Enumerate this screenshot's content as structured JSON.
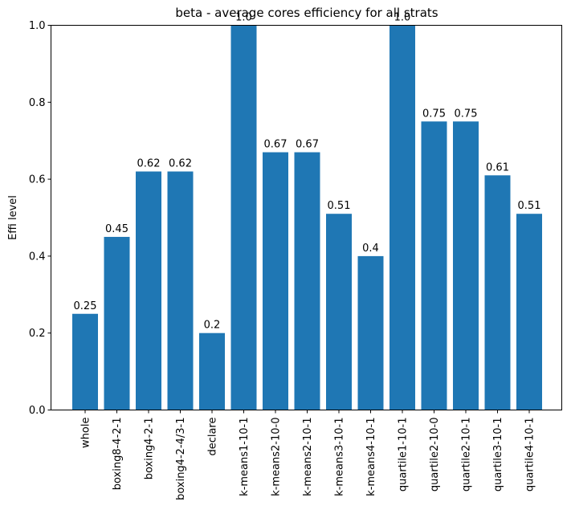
{
  "chart_data": {
    "type": "bar",
    "title": "beta - average cores efficiency for all strats",
    "xlabel": "",
    "ylabel": "Effi level",
    "ylim": [
      0,
      1.0
    ],
    "yticks": [
      "0.0",
      "0.2",
      "0.4",
      "0.6",
      "0.8",
      "1.0"
    ],
    "grid": false,
    "bar_color": "#1f77b4",
    "categories": [
      "whole",
      "boxing8-4-2-1",
      "boxing4-2-1",
      "boxing4-2-4/3-1",
      "declare",
      "k-means1-10-1",
      "k-means2-10-0",
      "k-means2-10-1",
      "k-means3-10-1",
      "k-means4-10-1",
      "quartile1-10-1",
      "quartile2-10-0",
      "quartile2-10-1",
      "quartile3-10-1",
      "quartile4-10-1"
    ],
    "values": [
      0.25,
      0.45,
      0.62,
      0.62,
      0.2,
      1.0,
      0.67,
      0.67,
      0.51,
      0.4,
      1.0,
      0.75,
      0.75,
      0.61,
      0.51
    ],
    "labels": [
      "0.25",
      "0.45",
      "0.62",
      "0.62",
      "0.2",
      "1.0",
      "0.67",
      "0.67",
      "0.51",
      "0.4",
      "1.0",
      "0.75",
      "0.75",
      "0.61",
      "0.51"
    ]
  }
}
